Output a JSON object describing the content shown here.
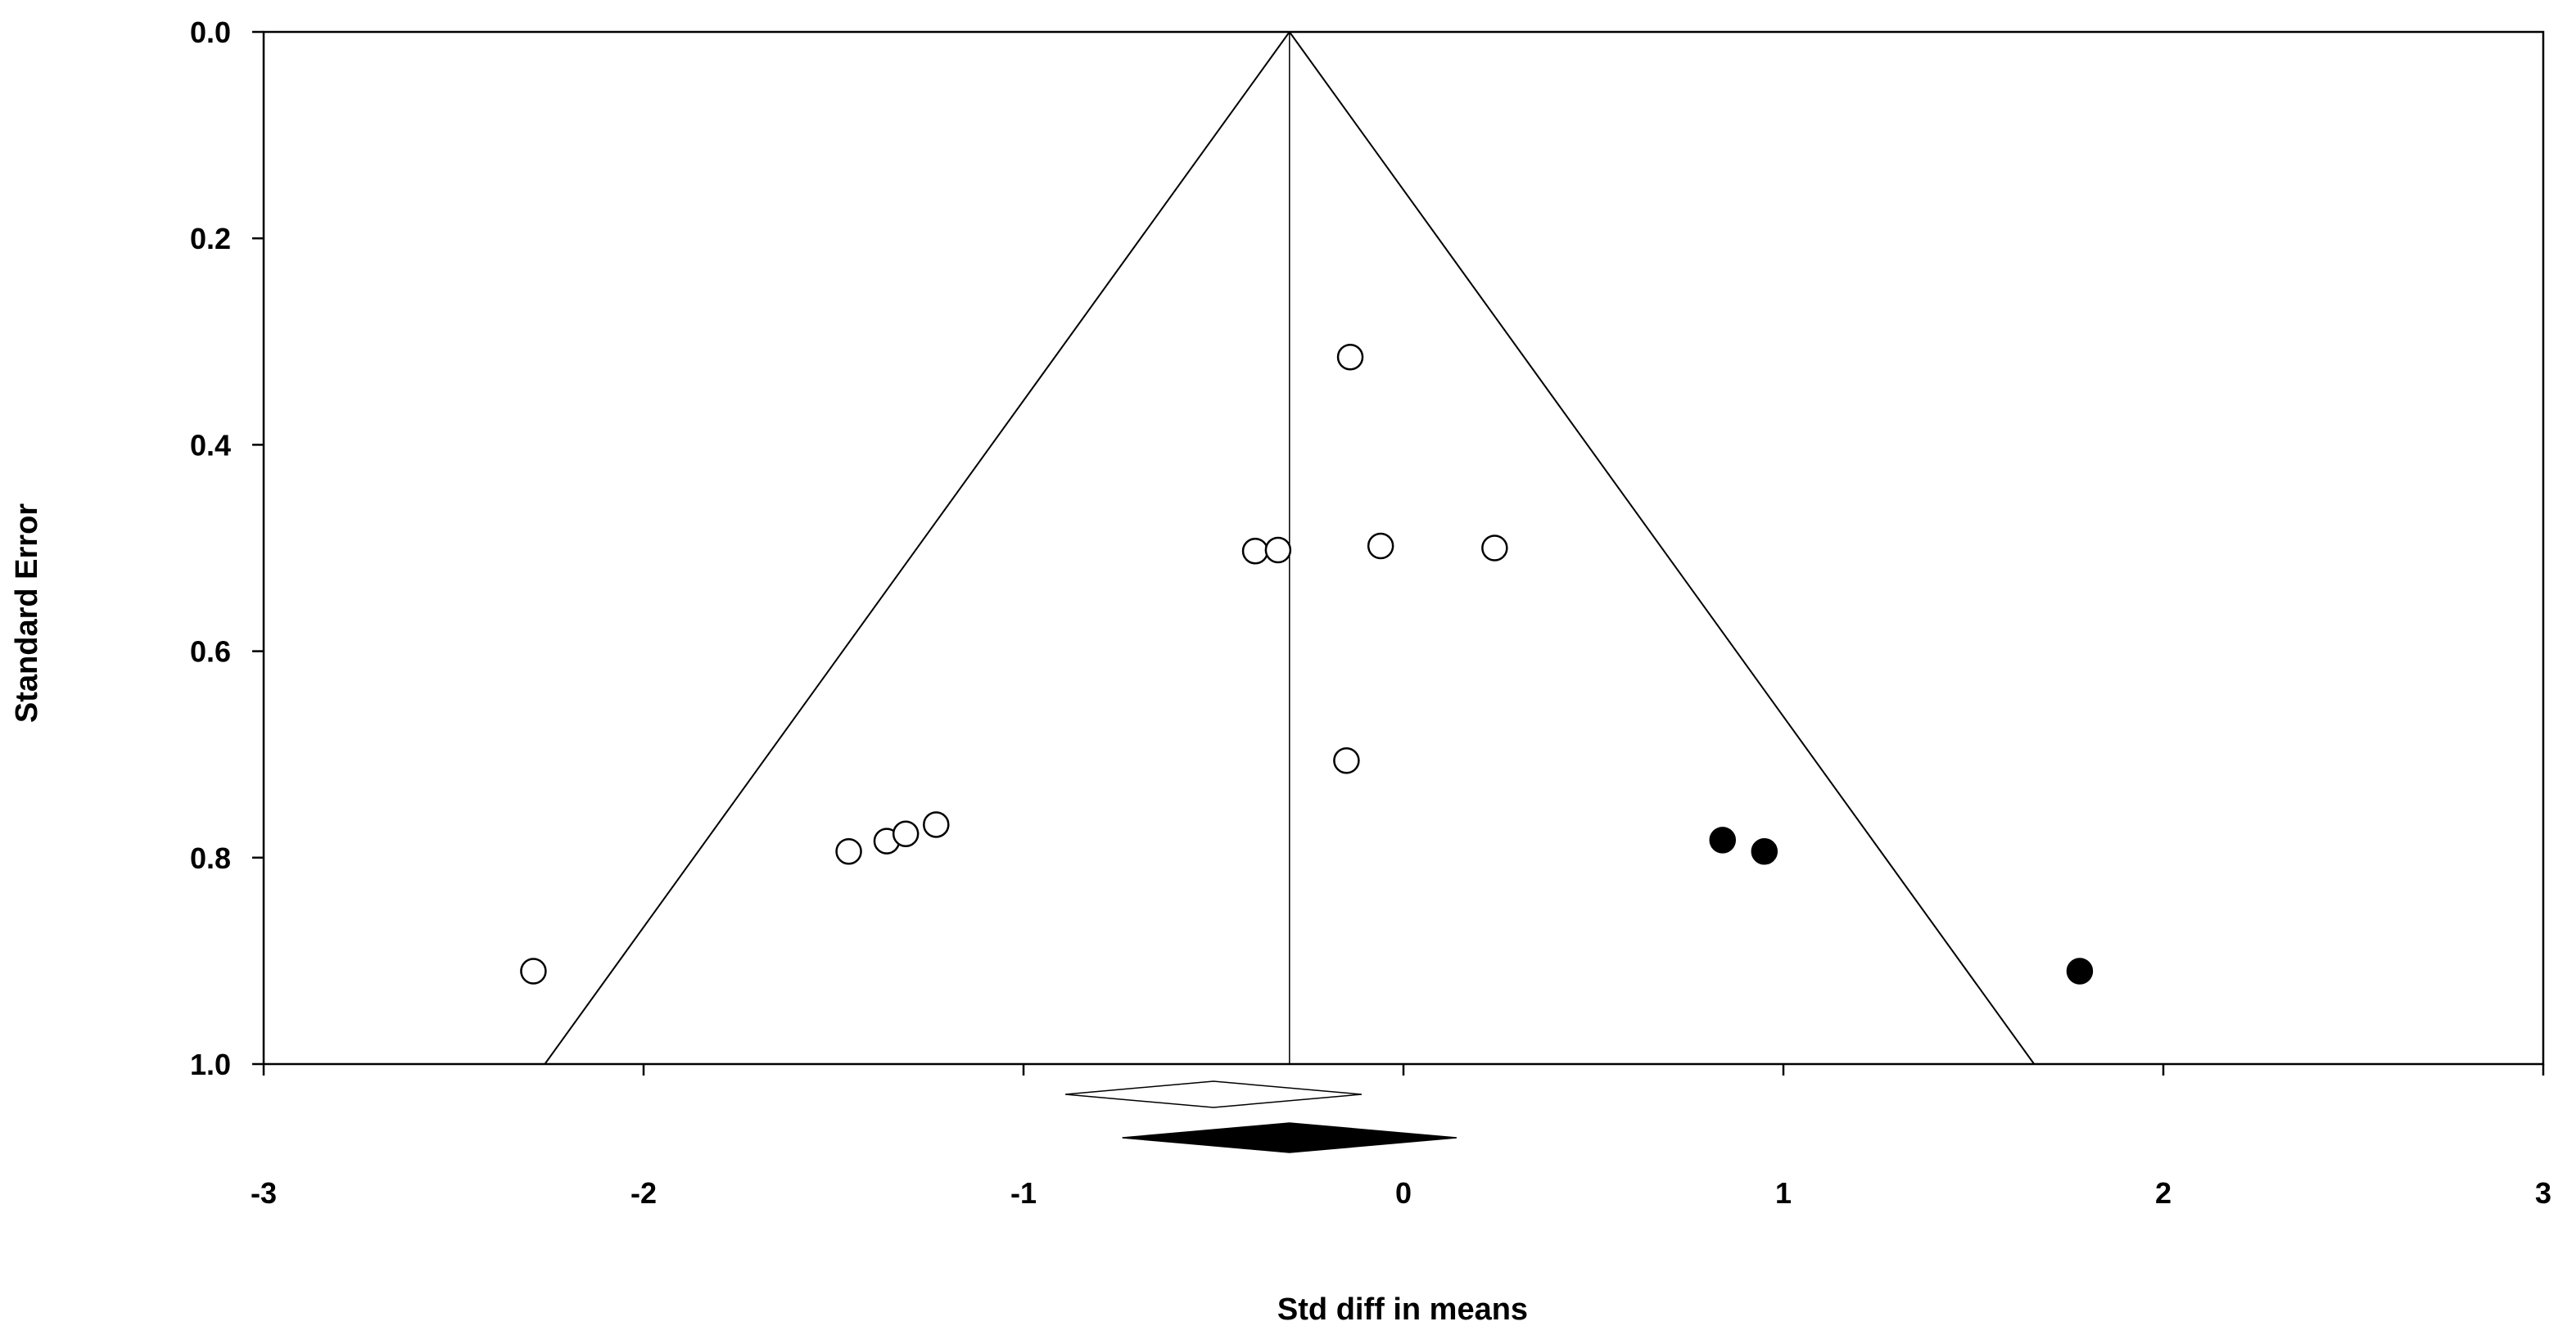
{
  "chart_data": {
    "type": "scatter",
    "subtype": "funnel plot",
    "title": "",
    "xlabel": "Std diff in means",
    "ylabel": "Standard Error",
    "xlim": [
      -3,
      3
    ],
    "ylim": [
      0,
      1
    ],
    "y_inverted": true,
    "x_ticks": [
      "-3",
      "-2",
      "-1",
      "0",
      "1",
      "2",
      "3"
    ],
    "y_ticks": [
      "0.0",
      "0.2",
      "0.4",
      "0.6",
      "0.8",
      "1.0"
    ],
    "grid": false,
    "legend": "none",
    "pooled_effect": -0.3,
    "funnel_apex": [
      -0.3,
      0
    ],
    "funnel_base": [
      [
        -2.26,
        1.0
      ],
      [
        1.66,
        1.0
      ]
    ],
    "series": [
      {
        "marker": "open-circle",
        "points": [
          {
            "x": -0.14,
            "y": 0.315
          },
          {
            "x": -0.39,
            "y": 0.503
          },
          {
            "x": -0.33,
            "y": 0.502
          },
          {
            "x": -0.06,
            "y": 0.498
          },
          {
            "x": 0.24,
            "y": 0.5
          },
          {
            "x": -0.15,
            "y": 0.706
          },
          {
            "x": -1.46,
            "y": 0.794
          },
          {
            "x": -1.36,
            "y": 0.784
          },
          {
            "x": -1.31,
            "y": 0.777
          },
          {
            "x": -1.23,
            "y": 0.768
          },
          {
            "x": -2.29,
            "y": 0.91
          }
        ]
      },
      {
        "marker": "filled-circle",
        "points": [
          {
            "x": 0.84,
            "y": 0.783
          },
          {
            "x": 0.95,
            "y": 0.794
          },
          {
            "x": 1.78,
            "y": 0.91
          }
        ]
      }
    ],
    "summary_diamonds": [
      {
        "style": "open",
        "center": -0.5,
        "lower": -0.89,
        "upper": -0.11
      },
      {
        "style": "filled",
        "center": -0.3,
        "lower": -0.74,
        "upper": 0.14
      }
    ],
    "colors": {
      "open_fill": "#ffffff",
      "filled": "#000000",
      "stroke": "#000000"
    }
  }
}
